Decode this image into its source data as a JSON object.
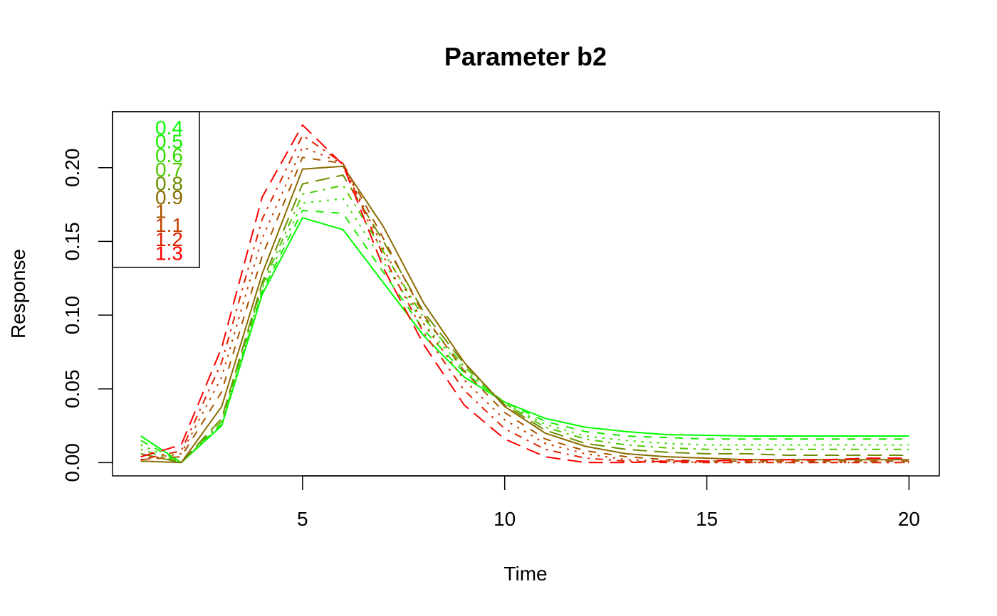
{
  "chart_data": {
    "type": "line",
    "title": "Parameter b2",
    "xlabel": "Time",
    "ylabel": "Response",
    "xlim": [
      0.3,
      20.75
    ],
    "ylim": [
      -0.009,
      0.238
    ],
    "x_ticks": [
      5,
      10,
      15,
      20
    ],
    "y_ticks": [
      0.0,
      0.05,
      0.1,
      0.15,
      0.2
    ],
    "x_tick_labels": [
      "5",
      "10",
      "15",
      "20"
    ],
    "y_tick_labels": [
      "0.00",
      "0.05",
      "0.10",
      "0.15",
      "0.20"
    ],
    "grid": false,
    "legend_position": "top-left",
    "x": [
      1,
      2,
      3,
      4,
      5,
      6,
      7,
      8,
      9,
      10,
      11,
      12,
      13,
      14,
      15,
      16,
      17,
      18,
      19,
      20
    ],
    "series": [
      {
        "name": "0.4",
        "color": "#00ff00",
        "dash": "solid",
        "values": [
          0.018,
          0.0,
          0.025,
          0.114,
          0.166,
          0.158,
          0.122,
          0.086,
          0.058,
          0.041,
          0.03,
          0.024,
          0.021,
          0.019,
          0.0185,
          0.018,
          0.018,
          0.018,
          0.018,
          0.018
        ]
      },
      {
        "name": "0.5",
        "color": "#1aed00",
        "dash": "dashed",
        "values": [
          0.015,
          0.0,
          0.026,
          0.116,
          0.171,
          0.169,
          0.129,
          0.09,
          0.061,
          0.041,
          0.028,
          0.021,
          0.018,
          0.017,
          0.016,
          0.016,
          0.016,
          0.016,
          0.016,
          0.016
        ]
      },
      {
        "name": "0.6",
        "color": "#33db00",
        "dash": "dotted",
        "values": [
          0.012,
          0.0,
          0.027,
          0.118,
          0.176,
          0.179,
          0.136,
          0.094,
          0.063,
          0.04,
          0.026,
          0.018,
          0.015,
          0.013,
          0.012,
          0.012,
          0.012,
          0.012,
          0.012,
          0.012
        ]
      },
      {
        "name": "0.7",
        "color": "#4dc800",
        "dash": "dotdash",
        "values": [
          0.009,
          0.0,
          0.028,
          0.12,
          0.182,
          0.188,
          0.143,
          0.098,
          0.065,
          0.04,
          0.024,
          0.016,
          0.012,
          0.01,
          0.009,
          0.009,
          0.009,
          0.009,
          0.009,
          0.009
        ]
      },
      {
        "name": "0.8",
        "color": "#6b8e00",
        "dash": "longdash",
        "values": [
          0.006,
          0.0,
          0.03,
          0.122,
          0.189,
          0.195,
          0.15,
          0.102,
          0.067,
          0.039,
          0.022,
          0.013,
          0.009,
          0.007,
          0.006,
          0.006,
          0.005,
          0.005,
          0.005,
          0.005
        ]
      },
      {
        "name": "0.9",
        "color": "#8b6b00",
        "dash": "solid",
        "values": [
          0.001,
          0.0,
          0.038,
          0.128,
          0.199,
          0.201,
          0.16,
          0.108,
          0.068,
          0.038,
          0.02,
          0.011,
          0.006,
          0.004,
          0.003,
          0.002,
          0.002,
          0.002,
          0.002,
          0.002
        ]
      },
      {
        "name": "1",
        "color": "#a85500",
        "dash": "dashed",
        "values": [
          0.002,
          0.004,
          0.048,
          0.14,
          0.207,
          0.203,
          0.152,
          0.1,
          0.062,
          0.034,
          0.016,
          0.008,
          0.004,
          0.002,
          0.001,
          0.001,
          0.001,
          0.001,
          0.001,
          0.001
        ]
      },
      {
        "name": "1.1",
        "color": "#c04000",
        "dash": "dotted",
        "values": [
          0.002,
          0.006,
          0.058,
          0.152,
          0.214,
          0.203,
          0.145,
          0.094,
          0.056,
          0.029,
          0.013,
          0.006,
          0.002,
          0.001,
          0.0,
          0.0,
          0.0,
          0.0,
          0.0,
          0.0
        ]
      },
      {
        "name": "1.2",
        "color": "#e02000",
        "dash": "dotdash",
        "values": [
          0.002,
          0.008,
          0.068,
          0.165,
          0.222,
          0.203,
          0.14,
          0.088,
          0.049,
          0.023,
          0.009,
          0.003,
          0.001,
          0.0,
          0.0,
          0.0,
          0.0,
          0.0,
          0.0,
          0.0
        ]
      },
      {
        "name": "1.3",
        "color": "#ff0000",
        "dash": "longdash",
        "values": [
          0.004,
          0.012,
          0.078,
          0.18,
          0.229,
          0.202,
          0.132,
          0.08,
          0.039,
          0.016,
          0.004,
          0.0,
          0.0,
          0.001,
          0.001,
          0.002,
          0.002,
          0.002,
          0.003,
          0.003
        ]
      }
    ]
  }
}
